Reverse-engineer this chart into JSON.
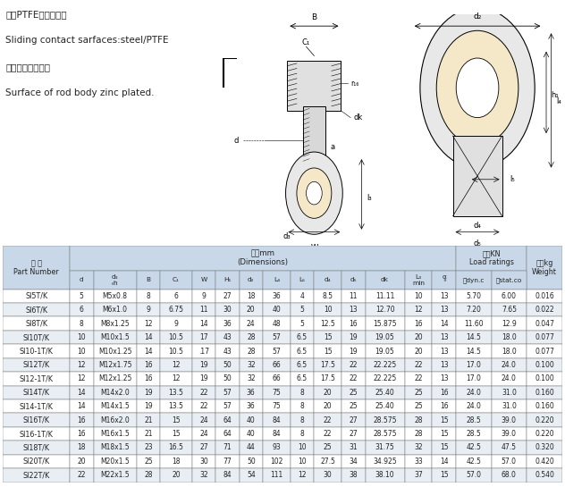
{
  "top_text_lines": [
    "钢对PTFE复合材料。",
    "Sliding contact sarfaces:steel/PTFE",
    "杆镐体表面镀锌。",
    "Surface of rod body zinc plated."
  ],
  "table_data": [
    [
      "SI5T/K",
      "5",
      "M5x0.8",
      "8",
      "6",
      "9",
      "27",
      "18",
      "36",
      "4",
      "8.5",
      "11",
      "11.11",
      "10",
      "13",
      "5.70",
      "6.00",
      "0.016"
    ],
    [
      "SI6T/K",
      "6",
      "M6x1.0",
      "9",
      "6.75",
      "11",
      "30",
      "20",
      "40",
      "5",
      "10",
      "13",
      "12.70",
      "12",
      "13",
      "7.20",
      "7.65",
      "0.022"
    ],
    [
      "SI8T/K",
      "8",
      "M8x1.25",
      "12",
      "9",
      "14",
      "36",
      "24",
      "48",
      "5",
      "12.5",
      "16",
      "15.875",
      "16",
      "14",
      "11.60",
      "12.9",
      "0.047"
    ],
    [
      "SI10T/K",
      "10",
      "M10x1.5",
      "14",
      "10.5",
      "17",
      "43",
      "28",
      "57",
      "6.5",
      "15",
      "19",
      "19.05",
      "20",
      "13",
      "14.5",
      "18.0",
      "0.077"
    ],
    [
      "SI10-1T/K",
      "10",
      "M10x1.25",
      "14",
      "10.5",
      ".17",
      "43",
      "28",
      "57",
      "6.5",
      "15",
      "19",
      "19.05",
      "20",
      "13",
      "14.5",
      "18.0",
      "0.077"
    ],
    [
      "SI12T/K",
      "12",
      "M12x1.75",
      "16",
      "12",
      "19",
      "50",
      "32",
      "66",
      "6.5",
      "17.5",
      "22",
      "22.225",
      "22",
      "13",
      "17.0",
      "24.0",
      "0.100"
    ],
    [
      "SI12-1T/K",
      "12",
      "M12x1.25",
      "16",
      "12",
      "19",
      "50",
      "32",
      "66",
      "6.5",
      "17.5",
      "22",
      "22.225",
      "22",
      "13",
      "17.0",
      "24.0",
      "0.100"
    ],
    [
      "SI14T/K",
      "14",
      "M14x2.0",
      "19",
      "13.5",
      "22",
      "57",
      "36",
      "75",
      "8",
      "20",
      "25",
      "25.40",
      "25",
      "16",
      "24.0",
      "31.0",
      "0.160"
    ],
    [
      "SI14-1T/K",
      "14",
      "M14x1.5",
      "19",
      "13.5",
      "22",
      "57",
      "36",
      "75",
      "8",
      "20",
      "25",
      "25.40",
      "25",
      "16",
      "24.0",
      "31.0",
      "0.160"
    ],
    [
      "SI16T/K",
      "16",
      "M16x2.0",
      "21",
      "15",
      "24",
      "64",
      "40",
      "84",
      "8",
      "22",
      "27",
      "28.575",
      "28",
      "15",
      "28.5",
      "39.0",
      "0.220"
    ],
    [
      "SI16-1T/K",
      "16",
      "M16x1.5",
      "21",
      "15",
      "24",
      "64",
      "40",
      "84",
      "8",
      "22",
      "27",
      "28.575",
      "28",
      "15",
      "28.5",
      "39.0",
      "0.220"
    ],
    [
      "SI18T/K",
      "18",
      "M18x1.5",
      "23",
      "16.5",
      "27",
      "71",
      "44",
      "93",
      "10",
      "25",
      "31",
      "31.75",
      "32",
      "15",
      "42.5",
      "47.5",
      "0.320"
    ],
    [
      "SI20T/K",
      "20",
      "M20x1.5",
      "25",
      "18",
      "30",
      "77",
      "50",
      "102",
      "10",
      "27.5",
      "34",
      "34.925",
      "33",
      "14",
      "42.5",
      "57.0",
      "0.420"
    ],
    [
      "SI22T/K",
      "22",
      "M22x1.5",
      "28",
      "20",
      "32",
      "84",
      "54",
      "111",
      "12",
      "30",
      "38",
      "38.10",
      "37",
      "15",
      "57.0",
      "68.0",
      "0.540"
    ]
  ],
  "bg_color_header": "#c8d8e8",
  "bg_color_white": "#ffffff",
  "bg_color_light": "#e8eef4",
  "text_color": "#222222",
  "font_size_top": 7.5,
  "fig_bg": "#ffffff",
  "col_widths_rel": [
    8.5,
    3,
    5.5,
    3,
    4,
    3,
    3,
    3,
    3.5,
    3,
    3.5,
    3,
    5,
    3.5,
    3,
    4.5,
    4.5,
    4.5
  ]
}
